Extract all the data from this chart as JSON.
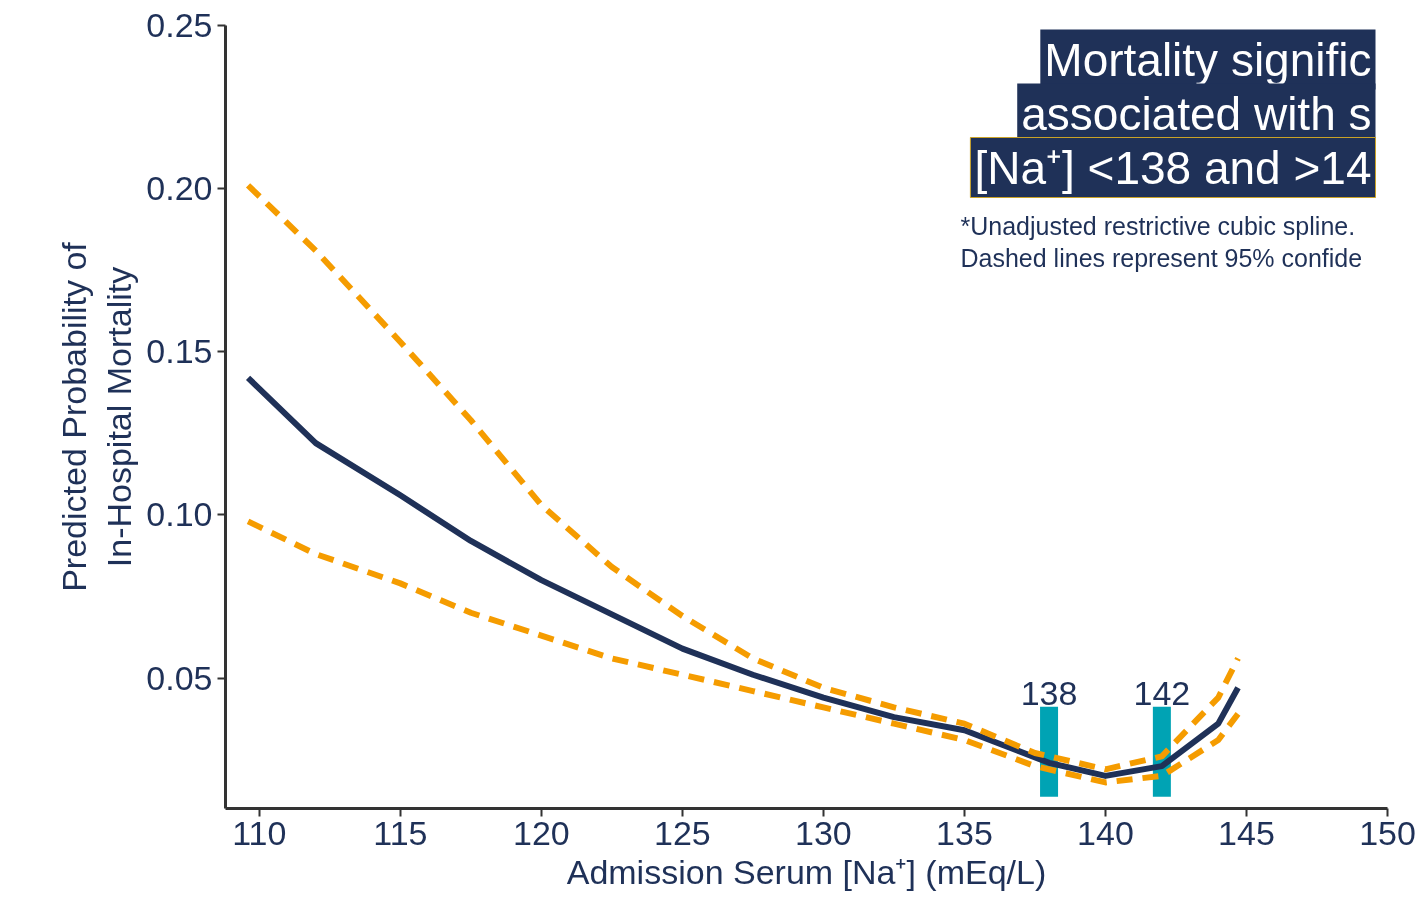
{
  "chart_data": {
    "type": "line",
    "title": "Mortality signific\nassociated with s\n[Na⁺] <138 and >14",
    "xlabel": "Admission Serum [Na⁺] (mEq/L)",
    "ylabel": "Predicted Probability of\nIn-Hospital Mortality",
    "annotations": [
      "*Unadjusted restrictive cubic spline.",
      "Dashed lines represent 95% confide"
    ],
    "ref_lines": [
      {
        "axis": "x",
        "value": 138,
        "label": "138",
        "color": "#00a3b4"
      },
      {
        "axis": "x",
        "value": 142,
        "label": "142",
        "color": "#00a3b4"
      }
    ],
    "series": [
      {
        "color": "#1f3158",
        "line_style": "solid",
        "x": [
          109.6,
          112,
          115,
          117.5,
          120,
          125,
          127.5,
          130,
          132.5,
          135,
          138,
          140,
          142,
          144,
          144.7
        ],
        "values": [
          0.142,
          0.122,
          0.106,
          0.092,
          0.08,
          0.059,
          0.051,
          0.044,
          0.038,
          0.034,
          0.024,
          0.02,
          0.023,
          0.036,
          0.047
        ]
      },
      {
        "color": "#f59c00",
        "line_style": "dashed",
        "x": [
          109.6,
          112,
          115,
          117.5,
          120,
          122.5,
          125,
          127.5,
          130,
          132.5,
          135,
          137.5,
          140,
          142,
          144,
          144.7
        ],
        "values": [
          0.201,
          0.181,
          0.153,
          0.129,
          0.103,
          0.084,
          0.069,
          0.056,
          0.047,
          0.041,
          0.036,
          0.027,
          0.022,
          0.026,
          0.044,
          0.056
        ]
      },
      {
        "color": "#f59c00",
        "line_style": "dashed",
        "x": [
          109.6,
          112,
          115,
          117.5,
          120,
          122.5,
          125,
          127.5,
          130,
          132.5,
          135,
          137.5,
          140,
          142,
          144,
          144.7
        ],
        "values": [
          0.098,
          0.088,
          0.079,
          0.07,
          0.063,
          0.056,
          0.051,
          0.046,
          0.041,
          0.036,
          0.031,
          0.023,
          0.018,
          0.02,
          0.031,
          0.039
        ]
      }
    ],
    "xlim": [
      108.8,
      150
    ],
    "xticks": [
      110,
      115,
      120,
      125,
      130,
      135,
      140,
      145,
      150
    ],
    "ylim": [
      0.01,
      0.25
    ],
    "yticks": [
      {
        "value": 0.05,
        "label": "0.05"
      },
      {
        "value": 0.1,
        "label": "0.10"
      },
      {
        "value": 0.15,
        "label": "0.15"
      },
      {
        "value": 0.2,
        "label": "0.20"
      },
      {
        "value": 0.25,
        "label": "0.25"
      }
    ],
    "grid": false
  }
}
